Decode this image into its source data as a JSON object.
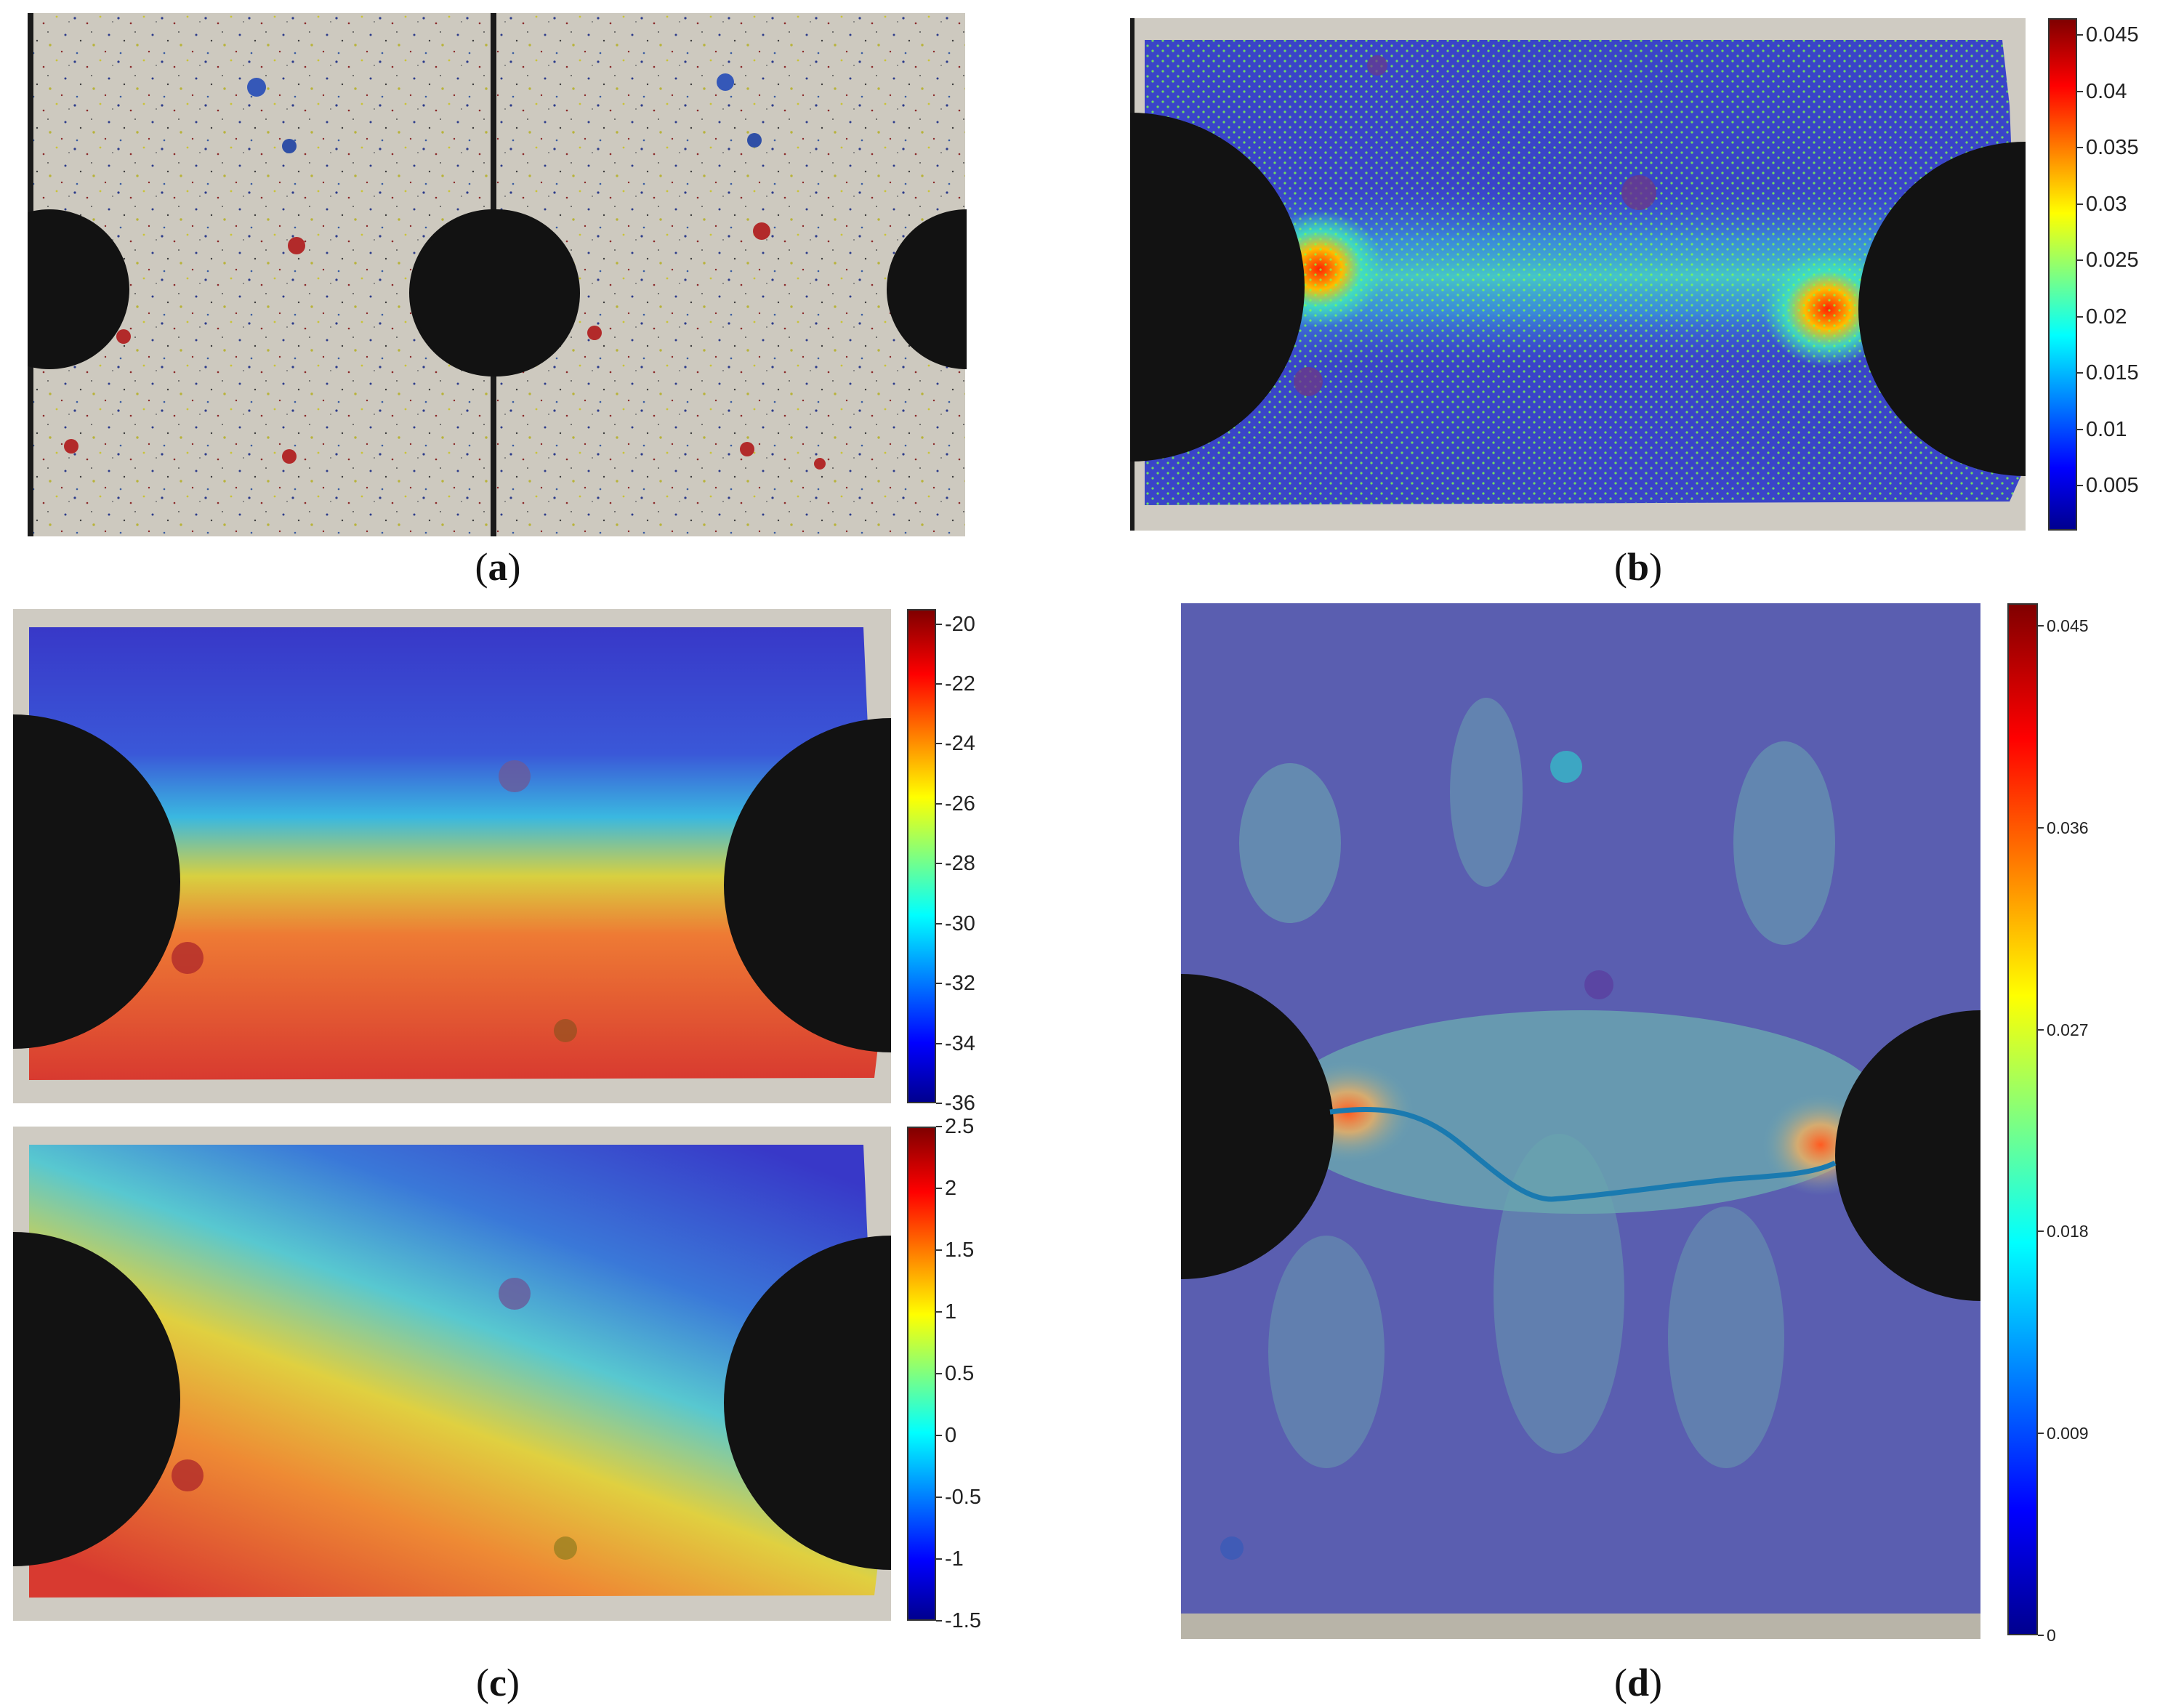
{
  "captions": {
    "a": {
      "open": "(",
      "letter": "a",
      "close": ")"
    },
    "b": {
      "open": "(",
      "letter": "b",
      "close": ")"
    },
    "c": {
      "open": "(",
      "letter": "c",
      "close": ")"
    },
    "d": {
      "open": "(",
      "letter": "d",
      "close": ")"
    }
  },
  "colorbars": {
    "b": {
      "ticks": [
        "0.045",
        "0.04",
        "0.035",
        "0.03",
        "0.025",
        "0.02",
        "0.015",
        "0.01",
        "0.005"
      ],
      "values": [
        0.045,
        0.04,
        0.035,
        0.03,
        0.025,
        0.02,
        0.015,
        0.01,
        0.005
      ],
      "range": [
        0.001,
        0.0465
      ]
    },
    "c_top": {
      "ticks": [
        "-20",
        "-22",
        "-24",
        "-26",
        "-28",
        "-30",
        "-32",
        "-34",
        "-36"
      ],
      "values": [
        -20,
        -22,
        -24,
        -26,
        -28,
        -30,
        -32,
        -34,
        -36
      ],
      "range": [
        -36,
        -19.5
      ]
    },
    "c_bottom": {
      "ticks": [
        "2.5",
        "2",
        "1.5",
        "1",
        "0.5",
        "0",
        "-0.5",
        "-1",
        "-1.5"
      ],
      "values": [
        2.5,
        2,
        1.5,
        1,
        0.5,
        0,
        -0.5,
        -1,
        -1.5
      ],
      "range": [
        -1.5,
        2.5
      ]
    },
    "d": {
      "ticks": [
        "0.045",
        "0.036",
        "0.027",
        "0.018",
        "0.009",
        "0"
      ],
      "values": [
        0.045,
        0.036,
        0.027,
        0.018,
        0.009,
        0
      ],
      "range": [
        0,
        0.046
      ]
    }
  },
  "colors": {
    "jet_dark_blue": "#00008f",
    "jet_blue": "#0000ff",
    "jet_cyan": "#00ffff",
    "jet_yellow": "#ffff00",
    "jet_red": "#ff0000",
    "jet_dark_red": "#800000",
    "specimen_gray": "#cfcbc2",
    "hole_black": "#121212"
  }
}
